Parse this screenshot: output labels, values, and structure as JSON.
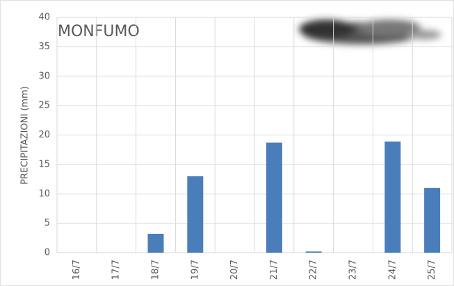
{
  "chart_data": {
    "type": "bar",
    "title": "MONFUMO",
    "y_label": "PRECIPITAZIONI (mm)",
    "categories": [
      "16/7",
      "17/7",
      "18/7",
      "19/7",
      "20/7",
      "21/7",
      "22/7",
      "23/7",
      "24/7",
      "25/7"
    ],
    "values": [
      0,
      0,
      3.2,
      13,
      0,
      18.7,
      0.2,
      0,
      18.9,
      11
    ],
    "color": "#4a7ebb",
    "ylim": [
      0,
      40
    ],
    "yticks": [
      0,
      5,
      10,
      15,
      20,
      25,
      30,
      35,
      40
    ],
    "grid": true
  }
}
